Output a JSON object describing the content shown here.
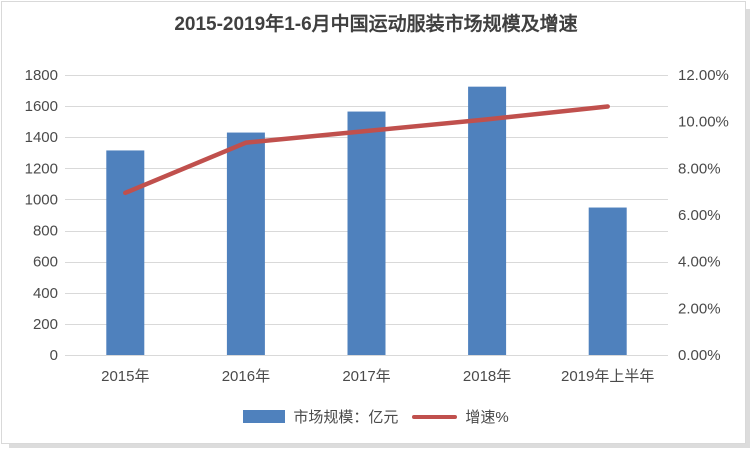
{
  "chart_data": {
    "type": "bar",
    "subtype": "combo-bar-line",
    "title": "2015-2019年1-6月中国运动服装市场规模及增速",
    "categories": [
      "2015年",
      "2016年",
      "2017年",
      "2018年",
      "2019年上半年"
    ],
    "series": [
      {
        "name": "市场规模：亿元",
        "type": "bar",
        "axis": "left",
        "color": "#4F81BD",
        "values": [
          1315,
          1430,
          1565,
          1725,
          948
        ]
      },
      {
        "name": "增速%",
        "type": "line",
        "axis": "right",
        "color": "#C0504D",
        "values": [
          6.95,
          9.1,
          9.6,
          10.1,
          10.65
        ]
      }
    ],
    "axes": {
      "left": {
        "min": 0,
        "max": 1800,
        "step": 200,
        "tick_labels": [
          "0",
          "200",
          "400",
          "600",
          "800",
          "1000",
          "1200",
          "1400",
          "1600",
          "1800"
        ]
      },
      "right": {
        "min": 0,
        "max": 12,
        "step": 2,
        "tick_labels": [
          "0.00%",
          "2.00%",
          "4.00%",
          "6.00%",
          "8.00%",
          "10.00%",
          "12.00%"
        ]
      }
    },
    "grid": true,
    "legend_position": "bottom"
  },
  "colors": {
    "grid": "#d9d9d9",
    "axis_text": "#4a4a4a",
    "title_text": "#404040",
    "frame_border": "#d9d9d9"
  }
}
